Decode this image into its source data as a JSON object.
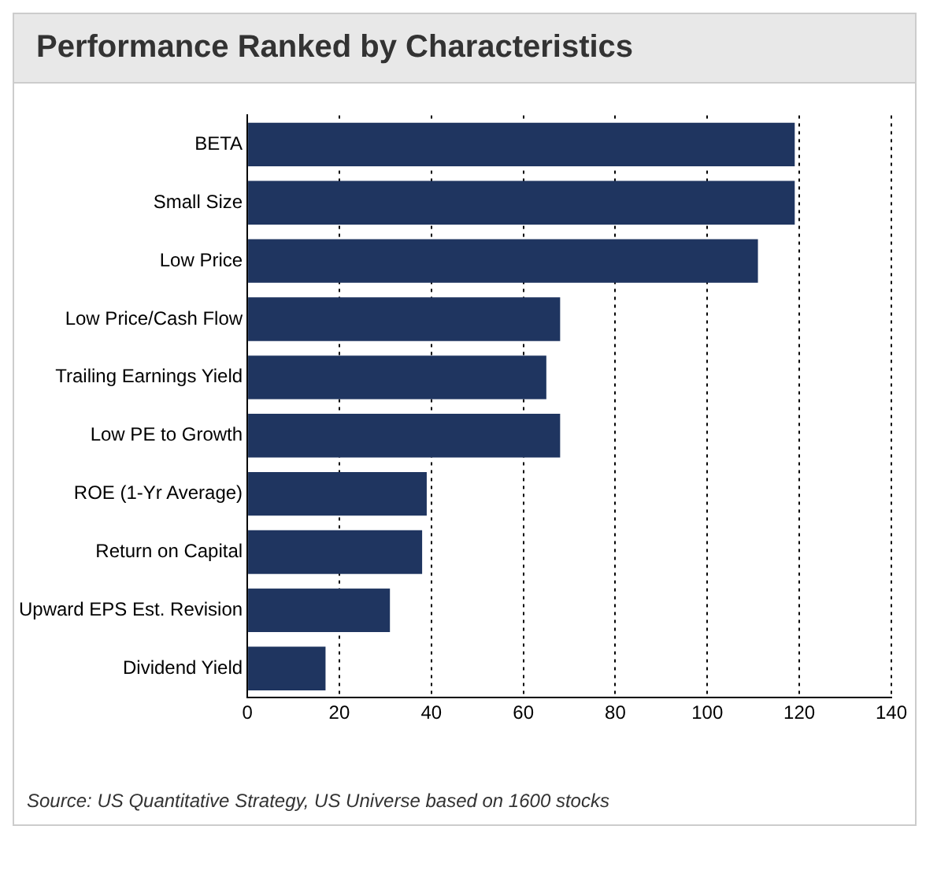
{
  "chart_data": {
    "type": "bar",
    "orientation": "horizontal",
    "title": "Performance Ranked by Characteristics",
    "categories": [
      "BETA",
      "Small Size",
      "Low Price",
      "Low Price/Cash Flow",
      "Trailing Earnings Yield",
      "Low PE to Growth",
      "ROE (1-Yr Average)",
      "Return on Capital",
      "Upward EPS Est. Revision",
      "Dividend Yield"
    ],
    "values": [
      119,
      119,
      111,
      68,
      65,
      68,
      39,
      38,
      31,
      17
    ],
    "color": "#1f3560",
    "xlim": [
      0,
      140
    ],
    "xticks": [
      0,
      20,
      40,
      60,
      80,
      100,
      120,
      140
    ],
    "grid": "x",
    "legend": false,
    "annotations": [
      "Source: US Quantitative Strategy, US Universe based on 1600 stocks"
    ]
  }
}
